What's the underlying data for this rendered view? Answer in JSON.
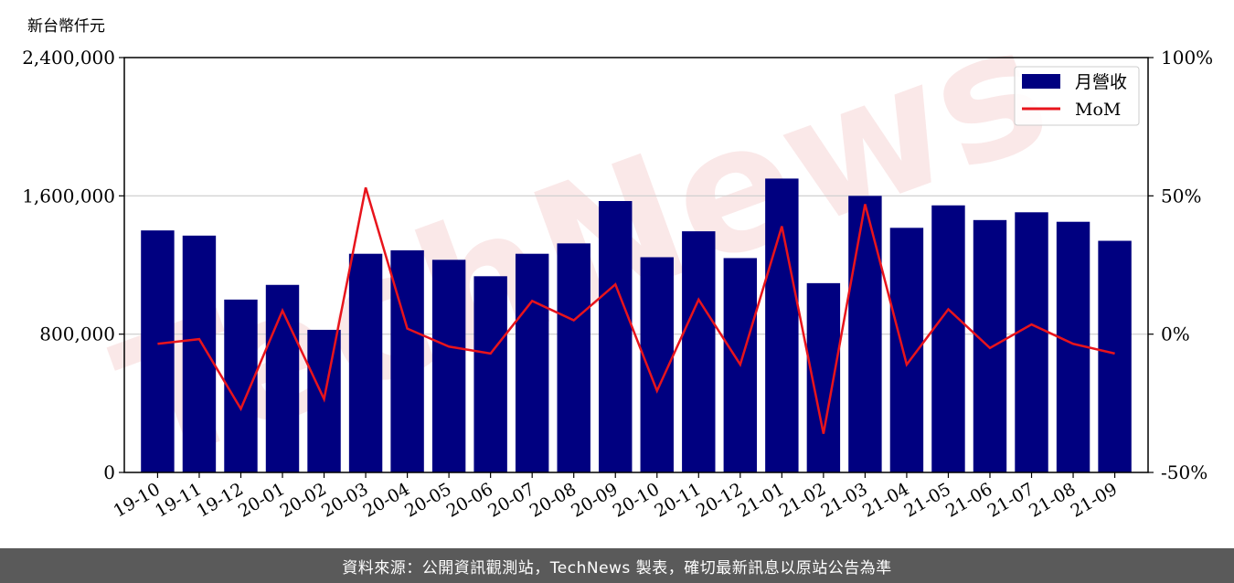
{
  "unit_label": "新台幣仟元",
  "footer": {
    "source_text": "資料來源：公開資訊觀測站，TechNews 製表，確切最新訊息以原站公告為準"
  },
  "watermark": {
    "text": "TechNews"
  },
  "colors": {
    "bar": "#000080",
    "line": "#e8141c",
    "grid": "#cccccc",
    "footer_bg": "#5a5a5a",
    "watermark_left": "#d8d8d8",
    "watermark_right": "#f6d6d6"
  },
  "chart_data": {
    "type": "bar",
    "categories": [
      "19-10",
      "19-11",
      "19-12",
      "20-01",
      "20-02",
      "20-03",
      "20-04",
      "20-05",
      "20-06",
      "20-07",
      "20-08",
      "20-09",
      "20-10",
      "20-11",
      "20-12",
      "21-01",
      "21-02",
      "21-03",
      "21-04",
      "21-05",
      "21-06",
      "21-07",
      "21-08",
      "21-09"
    ],
    "series": [
      {
        "name": "月營收",
        "kind": "bar",
        "axis": "left",
        "values": [
          1400000,
          1370000,
          1000000,
          1085000,
          825000,
          1265000,
          1285000,
          1230000,
          1135000,
          1265000,
          1325000,
          1570000,
          1245000,
          1395000,
          1240000,
          1700000,
          1095000,
          1600000,
          1415000,
          1545000,
          1460000,
          1505000,
          1450000,
          1340000
        ]
      },
      {
        "name": "MoM",
        "kind": "line",
        "axis": "right",
        "values": [
          -3.5,
          -1.8,
          -27,
          8.5,
          -23.5,
          53,
          2,
          -4.5,
          -7,
          12,
          5,
          18,
          -20.5,
          12.5,
          -11,
          39,
          -36,
          47,
          -11,
          9,
          -5,
          3.5,
          -3.5,
          -7
        ]
      }
    ],
    "yleft": {
      "lim": [
        0,
        2400000
      ],
      "ticks": [
        0,
        800000,
        1600000,
        2400000
      ],
      "tick_labels": [
        "0",
        "800,000",
        "1,600,000",
        "2,400,000"
      ]
    },
    "yright": {
      "lim": [
        -50,
        100
      ],
      "ticks": [
        -50,
        0,
        50,
        100
      ],
      "tick_labels": [
        "-50%",
        "0%",
        "50%",
        "100%"
      ]
    },
    "grid": "horizontal",
    "legend_position": "top-right"
  }
}
